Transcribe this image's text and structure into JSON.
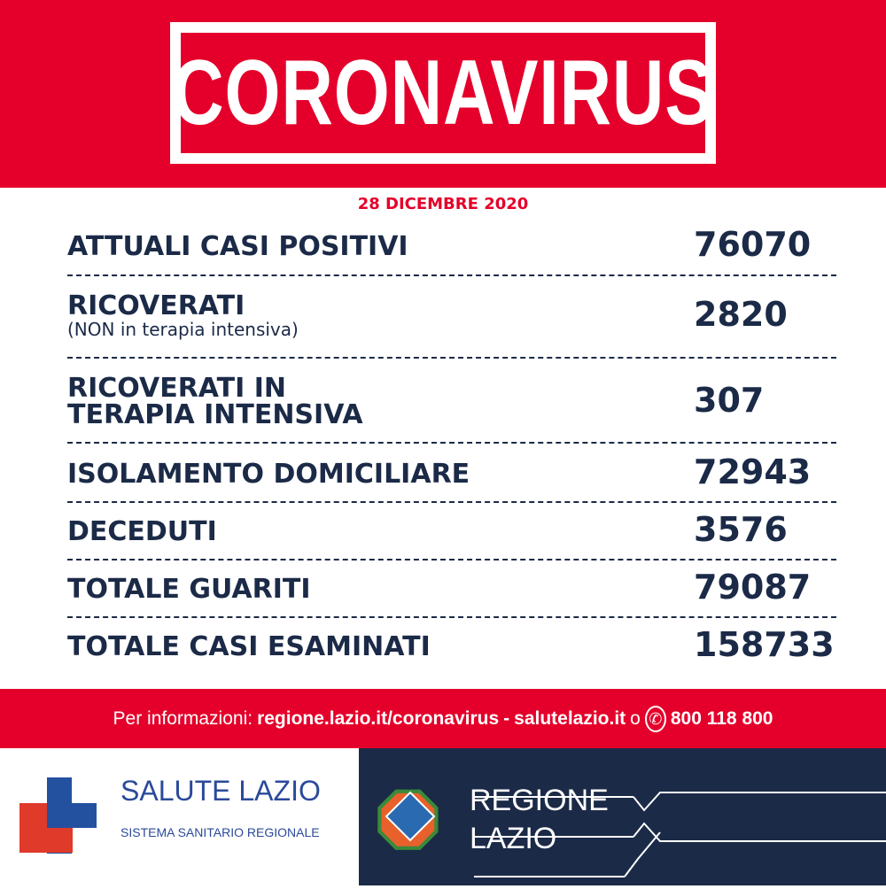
{
  "header": {
    "title": "CORONAVIRUS",
    "date": "28 DICEMBRE 2020"
  },
  "rows": [
    {
      "label": "ATTUALI CASI POSITIVI",
      "value": "76070"
    },
    {
      "label": "RICOVERATI",
      "sublabel": "(NON in terapia intensiva)",
      "value": "2820"
    },
    {
      "label": "RICOVERATI IN",
      "label2": "TERAPIA INTENSIVA",
      "value": "307"
    },
    {
      "label": "ISOLAMENTO DOMICILIARE",
      "value": "72943"
    },
    {
      "label": "DECEDUTI",
      "value": "3576"
    },
    {
      "label": "TOTALE GUARITI",
      "value": "79087"
    },
    {
      "label": "TOTALE CASI ESAMINATI",
      "value": "158733"
    }
  ],
  "info": {
    "prefix": "Per informazioni:",
    "link1": "regione.lazio.it/coronavirus",
    "sep": "-",
    "link2": "salutelazio.it",
    "or": "o",
    "phone_icon": "phone-icon",
    "phone": "800 118 800"
  },
  "footer": {
    "salute_title": "SALUTE LAZIO",
    "salute_sub": "SISTEMA SANITARIO REGIONALE",
    "regione_line1": "REGIONE",
    "regione_line2": "LAZIO"
  },
  "colors": {
    "red": "#e4002b",
    "navy": "#1b2a47",
    "blue": "#2351a0"
  }
}
